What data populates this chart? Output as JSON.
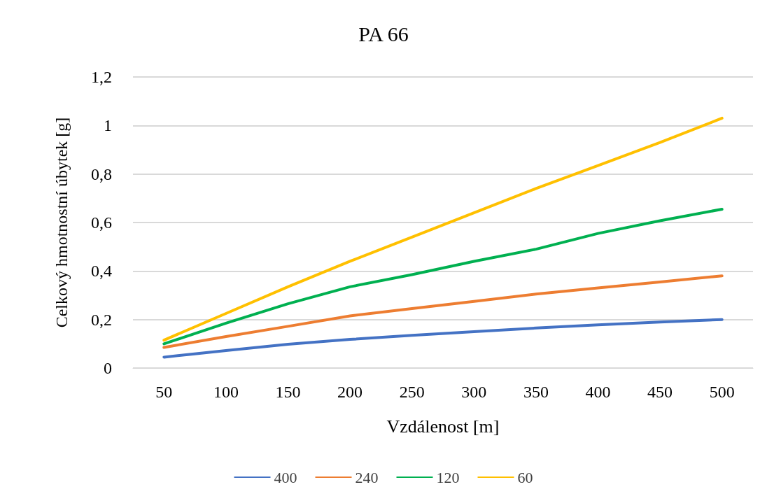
{
  "chart_data": {
    "type": "line",
    "title": "PA 66",
    "xlabel": "Vzdálenost [m]",
    "ylabel": "Celkový hmotnostní úbytek [g]",
    "categories": [
      "50",
      "100",
      "150",
      "200",
      "250",
      "300",
      "350",
      "400",
      "450",
      "500"
    ],
    "series": [
      {
        "name": "400",
        "color": "#4472c4",
        "values": [
          0.045,
          0.072,
          0.098,
          0.118,
          0.135,
          0.15,
          0.165,
          0.178,
          0.19,
          0.2
        ]
      },
      {
        "name": "240",
        "color": "#ed7d31",
        "values": [
          0.085,
          0.13,
          0.172,
          0.215,
          0.245,
          0.275,
          0.305,
          0.33,
          0.355,
          0.38
        ]
      },
      {
        "name": "120",
        "color": "#00b050",
        "values": [
          0.1,
          0.185,
          0.265,
          0.335,
          0.385,
          0.44,
          0.49,
          0.555,
          0.607,
          0.655
        ]
      },
      {
        "name": "60",
        "color": "#ffc000",
        "values": [
          0.115,
          0.225,
          0.335,
          0.44,
          0.54,
          0.64,
          0.74,
          0.835,
          0.93,
          1.03
        ]
      }
    ],
    "ylim": [
      0,
      1.2
    ],
    "yticks": [
      0,
      {
        "value": 0.2,
        "label": "0,2"
      },
      {
        "value": 0.4,
        "label": "0,4"
      },
      {
        "value": 0.6,
        "label": "0,6"
      },
      {
        "value": 0.8,
        "label": "0,8"
      },
      1,
      {
        "value": 1.2,
        "label": "1,2"
      }
    ],
    "grid": "y",
    "legend": "bottom",
    "marker": "none",
    "line_style": "solid"
  }
}
